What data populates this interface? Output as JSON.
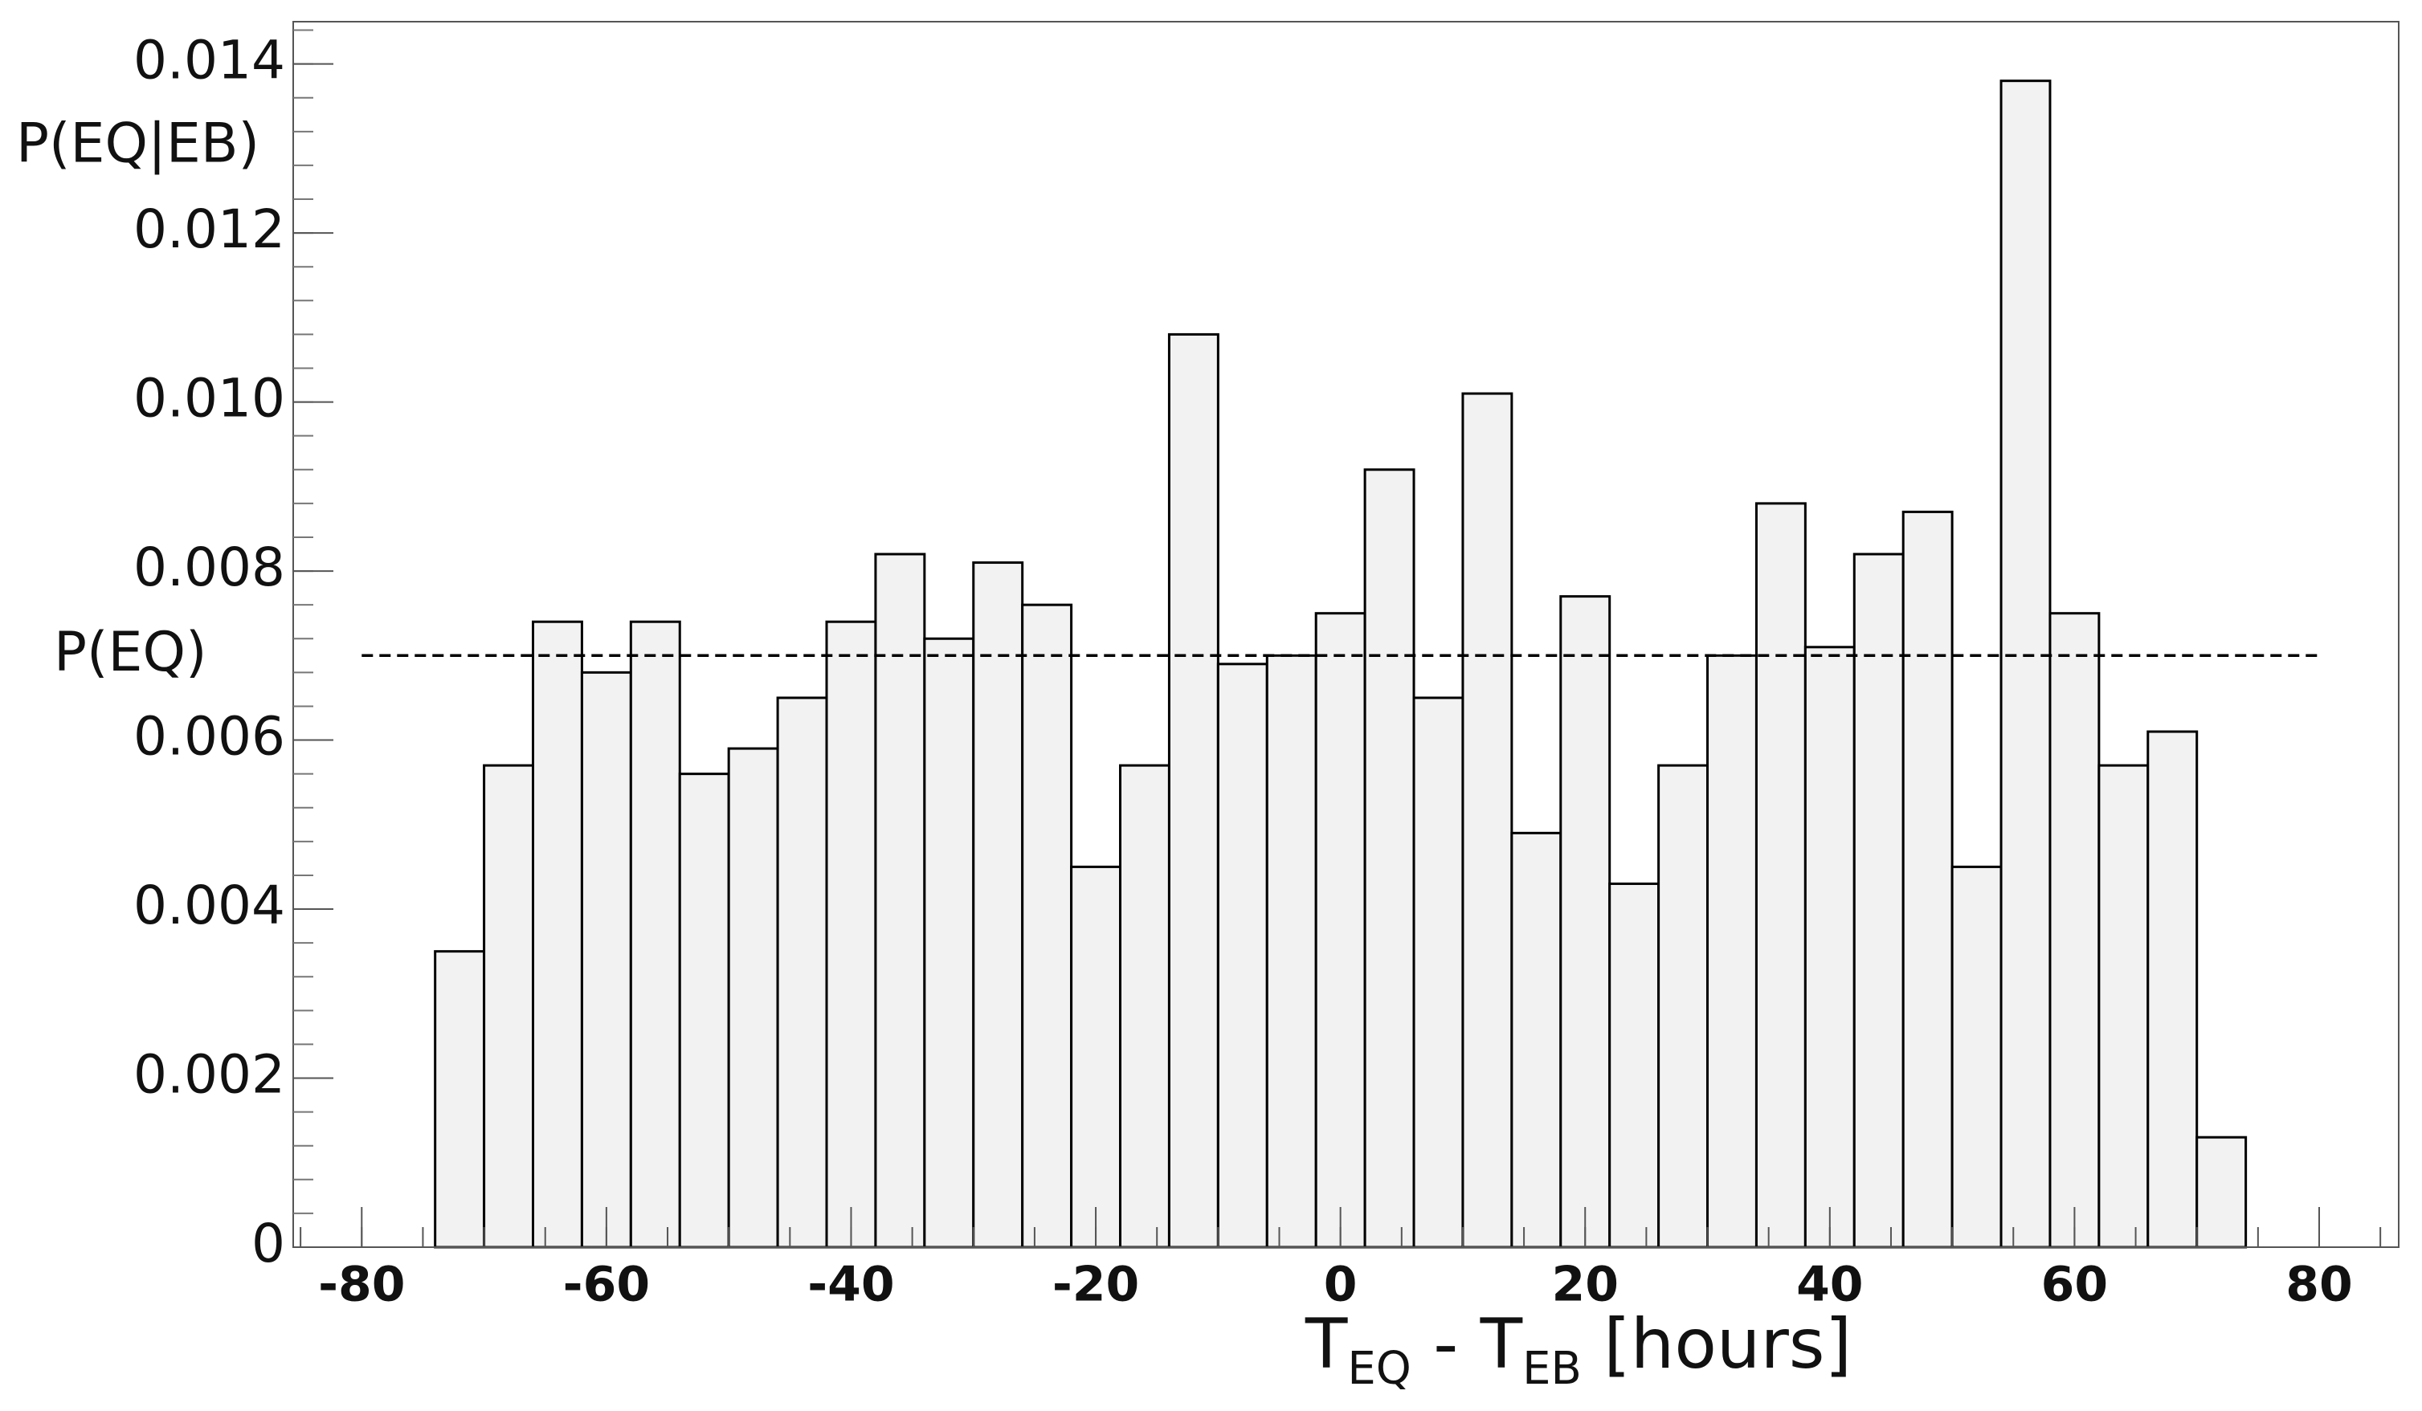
{
  "chart_data": {
    "type": "histogram",
    "ylabel": "P(EQ|EB)",
    "xlabel_parts": [
      "T",
      "EQ",
      " - T",
      "EB",
      " [hours]"
    ],
    "bins": [
      -74,
      -70,
      -66,
      -62,
      -58,
      -54,
      -50,
      -46,
      -42,
      -38,
      -34,
      -30,
      -26,
      -22,
      -18,
      -14,
      -10,
      -6,
      -2,
      2,
      6,
      10,
      14,
      18,
      22,
      26,
      30,
      34,
      38,
      42,
      46,
      50,
      54,
      58,
      62,
      66,
      70,
      74
    ],
    "values": [
      0.0035,
      0.0057,
      0.0074,
      0.0068,
      0.0074,
      0.0056,
      0.0059,
      0.0065,
      0.0074,
      0.0082,
      0.0072,
      0.0081,
      0.0076,
      0.0045,
      0.0057,
      0.0108,
      0.0069,
      0.007,
      0.0075,
      0.0092,
      0.0065,
      0.0101,
      0.0049,
      0.0077,
      0.0043,
      0.0057,
      0.007,
      0.0088,
      0.0071,
      0.0082,
      0.0087,
      0.0045,
      0.0138,
      0.0075,
      0.0057,
      0.0061,
      0.0013
    ],
    "color": "#f2f2f2",
    "reference_line": {
      "label": "P(EQ)",
      "value": 0.007,
      "xrange": [
        -80,
        80
      ]
    },
    "xlim": [
      -85.6,
      86.5
    ],
    "ylim": [
      0,
      0.0145
    ],
    "xticks": [
      -80,
      -60,
      -40,
      -20,
      0,
      20,
      40,
      60,
      80
    ],
    "yticks": [
      0,
      {
        "value": 0.002,
        "label": "0.002"
      },
      {
        "value": 0.004,
        "label": "0.004"
      },
      {
        "value": 0.006,
        "label": "0.006"
      },
      {
        "value": 0.008,
        "label": "0.008"
      },
      {
        "value": 0.01,
        "label": "0.010"
      },
      {
        "value": 0.012,
        "label": "0.012"
      },
      {
        "value": 0.014,
        "label": "0.014"
      }
    ]
  }
}
